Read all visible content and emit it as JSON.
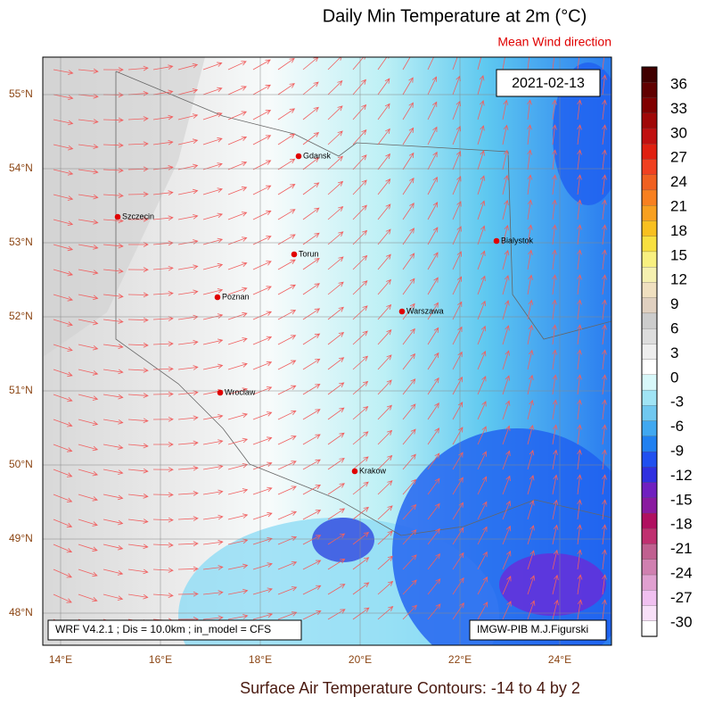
{
  "header": {
    "title": "Daily Min Temperature at 2m (°C)",
    "subtitle": "Mean Wind direction",
    "date": "2021-02-13"
  },
  "map": {
    "lat_labels": [
      "55°N",
      "54°N",
      "53°N",
      "52°N",
      "51°N",
      "50°N",
      "49°N",
      "48°N"
    ],
    "lon_labels": [
      "14°E",
      "16°E",
      "18°E",
      "20°E",
      "22°E",
      "24°E"
    ],
    "cities": [
      "Gdansk",
      "Szczecin",
      "Torun",
      "Poznan",
      "Warszawa",
      "Bialystok",
      "Wroclaw",
      "Krakow"
    ],
    "model_info": "WRF V4.2.1 ; Dis = 10.0km ; in_model = CFS",
    "credit": "IMGW-PIB M.J.Figurski"
  },
  "colorbar": {
    "labels": [
      36,
      33,
      30,
      27,
      24,
      21,
      18,
      15,
      12,
      9,
      6,
      3,
      0,
      -3,
      -6,
      -9,
      -12,
      -15,
      -18,
      -21,
      -24,
      -27,
      -30
    ]
  },
  "footer": {
    "caption": "Surface Air Temperature Contours: -14 to 4 by 2"
  }
}
